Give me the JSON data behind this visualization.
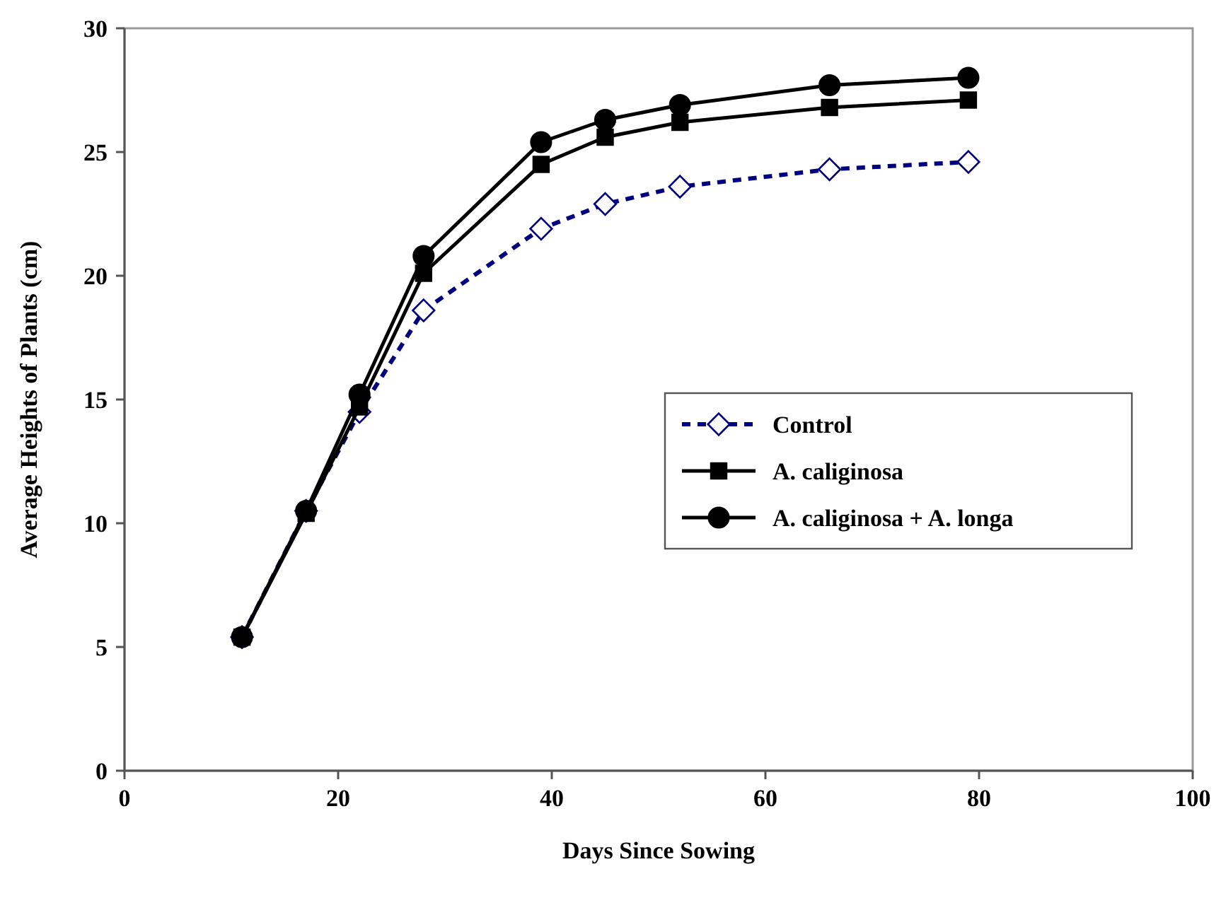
{
  "chart_data": {
    "type": "line",
    "xlabel": "Days Since Sowing",
    "ylabel": "Average Heights of Plants (cm)",
    "x": [
      11,
      17,
      22,
      28,
      39,
      45,
      52,
      66,
      79
    ],
    "series": [
      {
        "name": "Control",
        "color": "#000080",
        "values": [
          5.4,
          10.5,
          14.5,
          18.6,
          21.9,
          22.9,
          23.6,
          24.3,
          24.6
        ],
        "marker": "diamond",
        "line_style": "dashed"
      },
      {
        "name": "A. caliginosa",
        "color": "#000000",
        "values": [
          5.4,
          10.4,
          14.7,
          20.1,
          24.5,
          25.6,
          26.2,
          26.8,
          27.1
        ],
        "marker": "square",
        "line_style": "solid"
      },
      {
        "name": "A. caliginosa + A. longa",
        "color": "#000000",
        "values": [
          5.4,
          10.5,
          15.2,
          20.8,
          25.4,
          26.3,
          26.9,
          27.7,
          28.0
        ],
        "marker": "circle",
        "line_style": "solid"
      }
    ],
    "xlim": [
      0,
      100
    ],
    "xticks": [
      0,
      20,
      40,
      60,
      80,
      100
    ],
    "ylim": [
      0,
      30
    ],
    "yticks": [
      0,
      5,
      10,
      15,
      20,
      25,
      30
    ],
    "grid": false,
    "legend": "right"
  }
}
